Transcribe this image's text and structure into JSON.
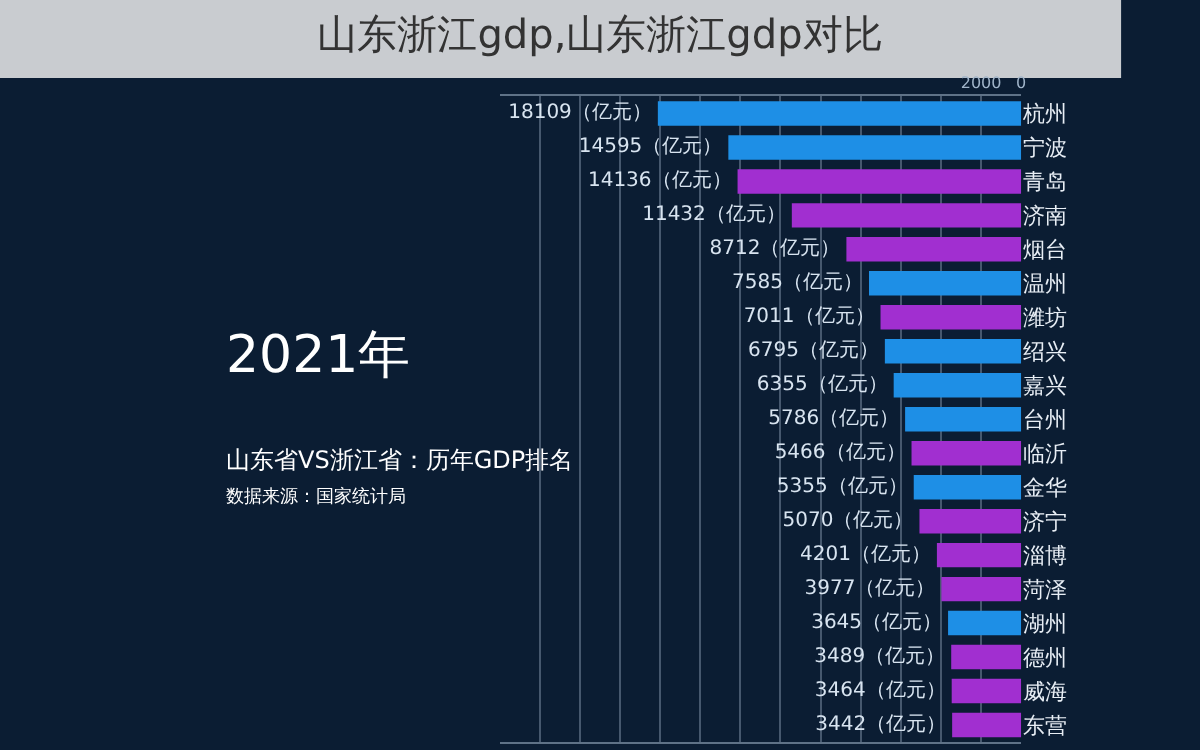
{
  "chart_data": {
    "type": "bar",
    "orientation": "horizontal",
    "title": "山东浙江gdp,山东浙江gdp对比",
    "categories": [
      "杭州",
      "宁波",
      "青岛",
      "济南",
      "烟台",
      "温州",
      "潍坊",
      "绍兴",
      "嘉兴",
      "台州",
      "临沂",
      "金华",
      "济宁",
      "淄博",
      "菏泽",
      "湖州",
      "德州",
      "威海",
      "东营"
    ],
    "values": [
      18109,
      14595,
      14136,
      11432,
      8712,
      7585,
      7011,
      6795,
      6355,
      5786,
      5466,
      5355,
      5070,
      4201,
      3977,
      3645,
      3489,
      3464,
      3442
    ],
    "colors": [
      "#1e8fe6",
      "#1e8fe6",
      "#a12fd0",
      "#a12fd0",
      "#a12fd0",
      "#1e8fe6",
      "#a12fd0",
      "#1e8fe6",
      "#1e8fe6",
      "#1e8fe6",
      "#a12fd0",
      "#1e8fe6",
      "#a12fd0",
      "#a12fd0",
      "#a12fd0",
      "#1e8fe6",
      "#a12fd0",
      "#a12fd0",
      "#a12fd0"
    ],
    "value_labels": [
      "18109（亿元）",
      "14595（亿元）",
      "14136（亿元）",
      "11432（亿元）",
      "8712（亿元）",
      "7585（亿元）",
      "7011（亿元）",
      "6795（亿元）",
      "6355（亿元）",
      "5786（亿元）",
      "5466（亿元）",
      "5355（亿元）",
      "5070（亿元）",
      "4201（亿元）",
      "3977（亿元）",
      "3645（亿元）",
      "3489（亿元）",
      "3464（亿元）",
      "3442（亿元）"
    ],
    "xlim": [
      26000,
      0
    ],
    "xticks": [
      {
        "value": 0,
        "label": "0"
      },
      {
        "value": 2000,
        "label": "2000"
      },
      {
        "value": 4000,
        "label": null
      },
      {
        "value": 6000,
        "label": null
      },
      {
        "value": 8000,
        "label": null
      },
      {
        "value": 10000,
        "label": null
      },
      {
        "value": 12000,
        "label": null
      },
      {
        "value": 14000,
        "label": null
      },
      {
        "value": 16000,
        "label": null
      },
      {
        "value": 18000,
        "label": null
      },
      {
        "value": 20000,
        "label": null
      },
      {
        "value": 22000,
        "label": null
      },
      {
        "value": 24000,
        "label": null
      }
    ],
    "grid": "x",
    "annotations": [
      "2021年",
      "山东省VS浙江省：历年GDP排名",
      "数据来源：国家统计局"
    ]
  }
}
